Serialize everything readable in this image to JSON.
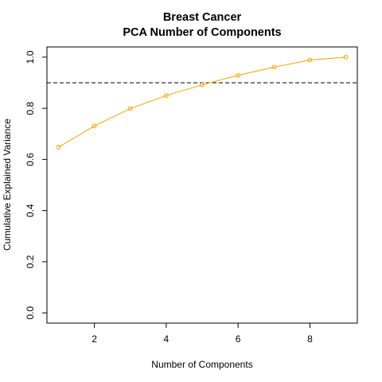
{
  "chart_data": {
    "type": "line",
    "title_line1": "Breast Cancer",
    "title_line2": "PCA Number of Components",
    "xlabel": "Number of Components",
    "ylabel": "Cumulative Explained Variance",
    "x": [
      1,
      2,
      3,
      4,
      5,
      6,
      7,
      8,
      9
    ],
    "y": [
      0.648,
      0.731,
      0.799,
      0.85,
      0.892,
      0.929,
      0.961,
      0.989,
      1.0
    ],
    "xlim": [
      0.68,
      9.32
    ],
    "ylim": [
      -0.04,
      1.04
    ],
    "xticks": [
      2,
      4,
      6,
      8
    ],
    "yticks": [
      0.0,
      0.2,
      0.4,
      0.6,
      0.8,
      1.0
    ],
    "xtick_labels": [
      "2",
      "4",
      "6",
      "8"
    ],
    "ytick_labels": [
      "0.0",
      "0.2",
      "0.4",
      "0.6",
      "0.8",
      "1.0"
    ],
    "reference_line": {
      "y": 0.9,
      "style": "dashed",
      "color": "#000000"
    },
    "series_color": "#F5A300",
    "marker": "open-circle",
    "grid": false
  }
}
